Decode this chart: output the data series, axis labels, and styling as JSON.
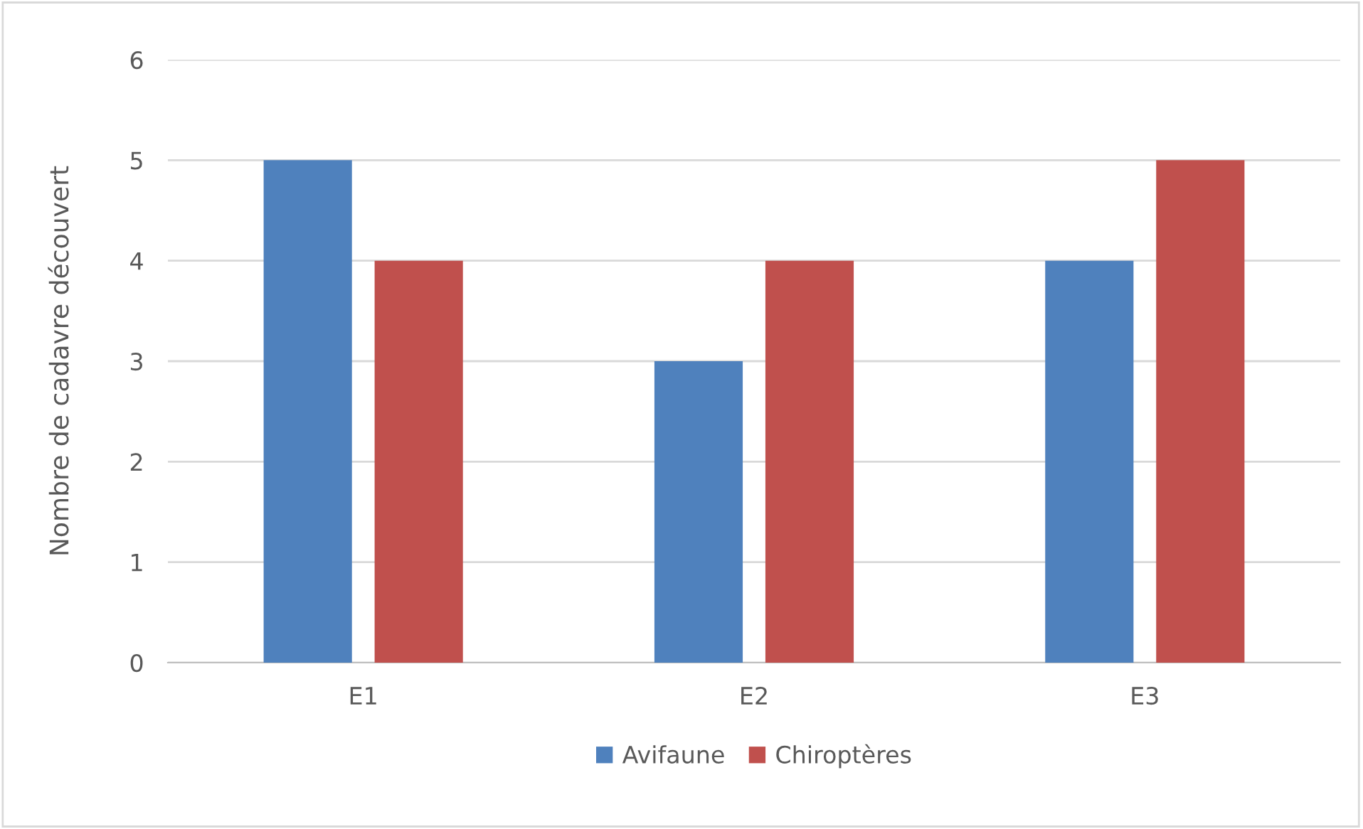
{
  "chart_data": {
    "type": "bar",
    "ylabel": "Nombre de cadavre découvert",
    "categories": [
      "E1",
      "E2",
      "E3"
    ],
    "series": [
      {
        "name": "Avifaune",
        "color": "#4f81bd",
        "values": [
          5,
          3,
          4
        ]
      },
      {
        "name": "Chiroptères",
        "color": "#c0504d",
        "values": [
          4,
          4,
          5
        ]
      }
    ],
    "ylim": [
      0,
      6
    ],
    "yticks": [
      0,
      1,
      2,
      3,
      4,
      5,
      6
    ],
    "grid": "y",
    "legend": "bottom"
  }
}
